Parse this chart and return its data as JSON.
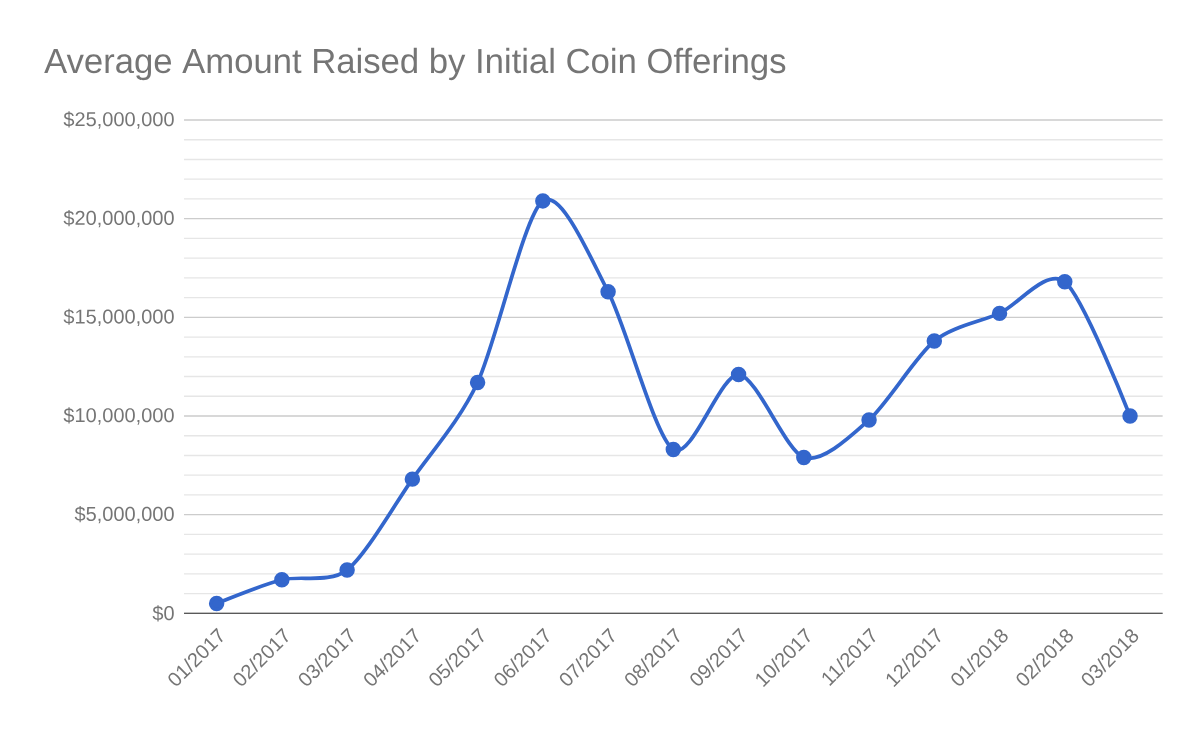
{
  "chart_data": {
    "type": "line",
    "title": "Average Amount Raised by Initial Coin Offerings",
    "categories": [
      "01/2017",
      "02/2017",
      "03/2017",
      "04/2017",
      "05/2017",
      "06/2017",
      "07/2017",
      "08/2017",
      "09/2017",
      "10/2017",
      "11/2017",
      "12/2017",
      "01/2018",
      "02/2018",
      "03/2018"
    ],
    "series": [
      {
        "color": "#3366cc",
        "values": [
          500000,
          1700000,
          2200000,
          6800000,
          11700000,
          20900000,
          16300000,
          8300000,
          12100000,
          7900000,
          9800000,
          13800000,
          15200000,
          16800000,
          10000000
        ]
      }
    ],
    "ylim": [
      0,
      25000000
    ],
    "yticks": [
      {
        "value": 0,
        "label": "$0"
      },
      {
        "value": 5000000,
        "label": "$5,000,000"
      },
      {
        "value": 10000000,
        "label": "$10,000,000"
      },
      {
        "value": 15000000,
        "label": "$15,000,000"
      },
      {
        "value": 20000000,
        "label": "$20,000,000"
      },
      {
        "value": 25000000,
        "label": "$25,000,000"
      }
    ],
    "grid": "y",
    "marker": "circle",
    "line_style": "solid"
  }
}
